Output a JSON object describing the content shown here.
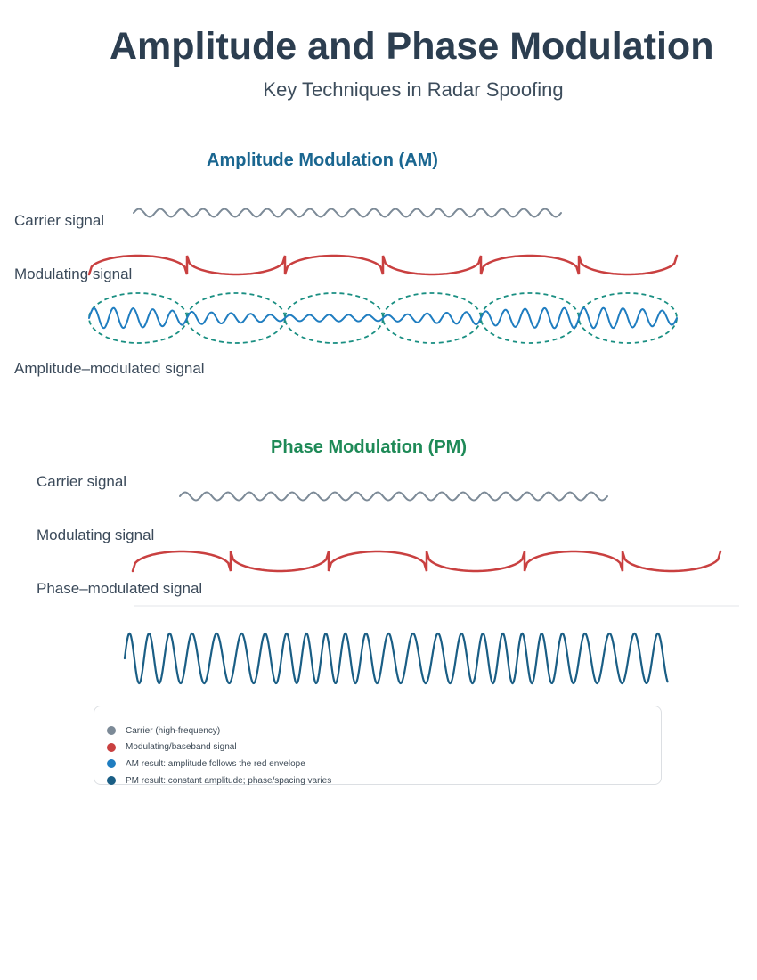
{
  "header": {
    "title": "Amplitude and Phase Modulation",
    "subtitle": "Key Techniques in Radar Spoofing"
  },
  "am_section": {
    "title": "Amplitude Modulation (AM)",
    "carrier_label": "Carrier signal",
    "modulating_label": "Modulating signal",
    "result_label": "Amplitude–modulated signal"
  },
  "pm_section": {
    "title": "Phase Modulation (PM)",
    "carrier_label": "Carrier signal",
    "modulating_label": "Modulating signal",
    "result_label": "Phase–modulated signal"
  },
  "legend": {
    "items": [
      {
        "label": "Carrier (high-frequency)",
        "color": "#7c8a97"
      },
      {
        "label": "Modulating/baseband signal",
        "color": "#c94040"
      },
      {
        "label": "AM result: amplitude follows the red envelope",
        "color": "#1f7dc0"
      },
      {
        "label": "PM result: constant amplitude; phase/spacing varies",
        "color": "#1a5e85"
      }
    ]
  },
  "colors": {
    "carrier": "#7c8a97",
    "modulating": "#c94040",
    "am_result": "#1f7dc0",
    "am_envelope": "#1a8f82",
    "pm_result": "#1a5e85",
    "divider": "#e3e6ea"
  }
}
